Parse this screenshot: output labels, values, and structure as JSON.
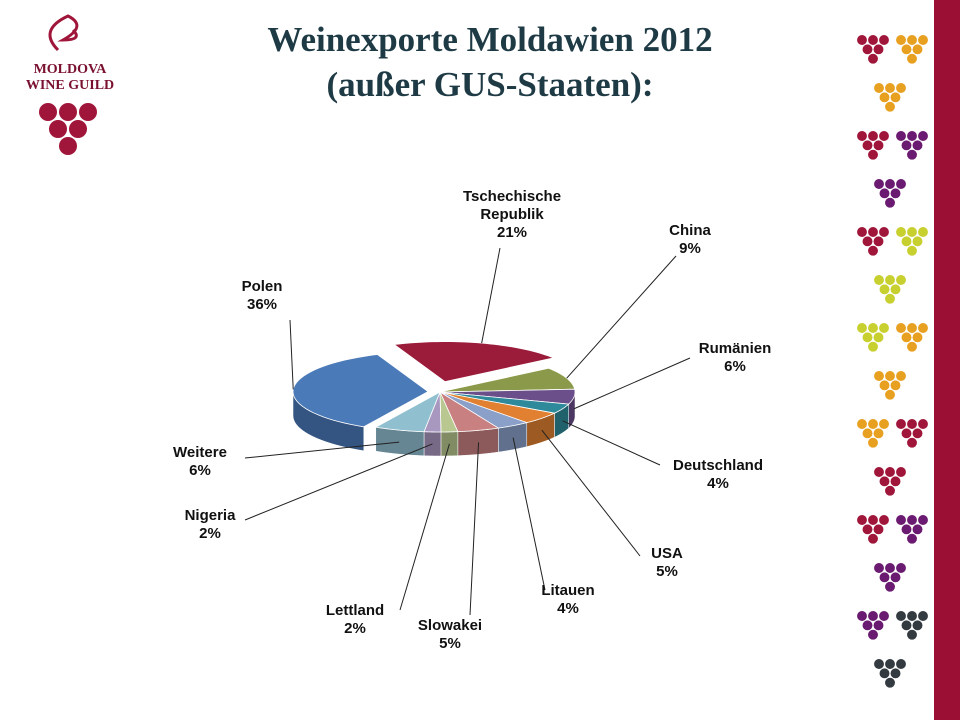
{
  "logo": {
    "lines": [
      "MOLDOVA",
      "WINE GUILD"
    ]
  },
  "chart_data": {
    "type": "pie3d",
    "title": "Weinexporte Moldawien 2012",
    "subtitle": "(außer GUS-Staaten):",
    "categories": [
      "Tschechische Republik",
      "China",
      "Rumänien",
      "Deutschland",
      "USA",
      "Litauen",
      "Slowakei",
      "Lettland",
      "Nigeria",
      "Weitere",
      "Polen"
    ],
    "values": [
      21,
      9,
      6,
      4,
      5,
      4,
      5,
      2,
      2,
      6,
      36
    ],
    "value_labels": [
      "21%",
      "9%",
      "6%",
      "4%",
      "5%",
      "4%",
      "5%",
      "2%",
      "2%",
      "6%",
      "36%"
    ],
    "colors": [
      "#9b1b3a",
      "#8a9a4a",
      "#6b4f8a",
      "#2e8a9a",
      "#e08030",
      "#8aa0c8",
      "#c88080",
      "#b8c890",
      "#a898c0",
      "#90c0d0",
      "#4a7ab8"
    ]
  }
}
